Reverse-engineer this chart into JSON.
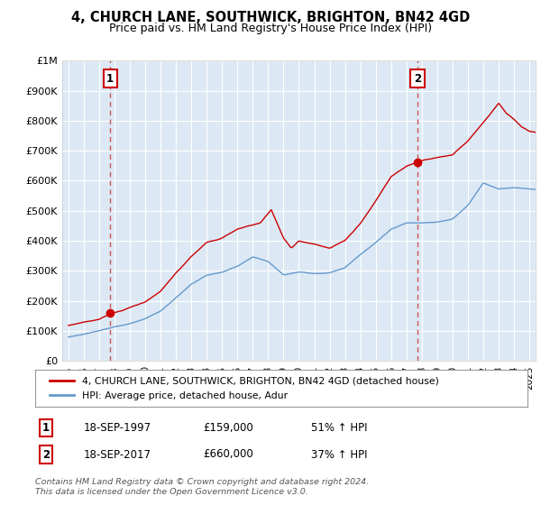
{
  "title": "4, CHURCH LANE, SOUTHWICK, BRIGHTON, BN42 4GD",
  "subtitle": "Price paid vs. HM Land Registry's House Price Index (HPI)",
  "legend_line1": "4, CHURCH LANE, SOUTHWICK, BRIGHTON, BN42 4GD (detached house)",
  "legend_line2": "HPI: Average price, detached house, Adur",
  "annotation1_date": "18-SEP-1997",
  "annotation1_price": "£159,000",
  "annotation1_hpi": "51% ↑ HPI",
  "annotation2_date": "18-SEP-2017",
  "annotation2_price": "£660,000",
  "annotation2_hpi": "37% ↑ HPI",
  "footer": "Contains HM Land Registry data © Crown copyright and database right 2024.\nThis data is licensed under the Open Government Licence v3.0.",
  "red_color": "#cc0000",
  "blue_color": "#6699cc",
  "dashed_color": "#cc4444",
  "plot_bg_color": "#dce9f5",
  "background_color": "#ffffff",
  "grid_color": "#ffffff",
  "ylim": [
    0,
    1000000
  ],
  "yticks": [
    0,
    100000,
    200000,
    300000,
    400000,
    500000,
    600000,
    700000,
    800000,
    900000,
    1000000
  ],
  "ytick_labels": [
    "£0",
    "£100K",
    "£200K",
    "£300K",
    "£400K",
    "£500K",
    "£600K",
    "£700K",
    "£800K",
    "£900K",
    "£1M"
  ],
  "xlim_start": 1994.6,
  "xlim_end": 2025.4,
  "sale1_year": 1997.72,
  "sale1_price": 159000,
  "sale2_year": 2017.72,
  "sale2_price": 660000
}
